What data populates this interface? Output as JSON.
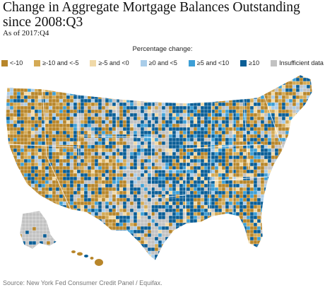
{
  "title": "Change in Aggregate Mortgage Balances Outstanding since 2008:Q3",
  "subtitle": "As of 2017:Q4",
  "legend": {
    "title": "Percentage change:",
    "items": [
      {
        "label": "<-10",
        "color": "#b8862a"
      },
      {
        "label": "≥-10 and <-5",
        "color": "#d4aa55"
      },
      {
        "label": "≥-5 and <0",
        "color": "#f0d9a8"
      },
      {
        "label": "≥0 and <5",
        "color": "#a9cde9"
      },
      {
        "label": "≥5 and <10",
        "color": "#3d9fd6"
      },
      {
        "label": "≥10",
        "color": "#0a5e96"
      },
      {
        "label": "Insufficient data",
        "color": "#c2c2c2"
      }
    ]
  },
  "source": "Source: New York Fed Consumer Credit Panel / Equifax."
}
